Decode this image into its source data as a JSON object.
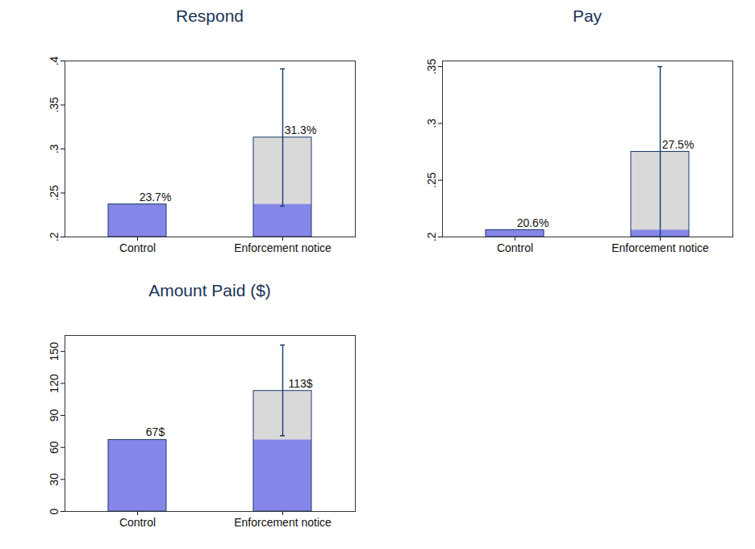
{
  "chart_data": [
    {
      "type": "bar",
      "title": "Respond",
      "categories": [
        "Control",
        "Enforcement notice"
      ],
      "values": [
        0.237,
        0.313
      ],
      "value_labels": [
        "23.7%",
        "31.3%"
      ],
      "colors": [
        "#8686e8",
        "#d9d9d9"
      ],
      "error_bars": [
        null,
        [
          0.235,
          0.391
        ]
      ],
      "ylim": [
        0.2,
        0.4
      ],
      "yticks": [
        {
          "value": 0.2,
          "label": ".2"
        },
        {
          "value": 0.25,
          "label": ".25"
        },
        {
          "value": 0.3,
          "label": ".3"
        },
        {
          "value": 0.35,
          "label": ".35"
        },
        {
          "value": 0.4,
          "label": ".4"
        }
      ],
      "data_labels": true
    },
    {
      "type": "bar",
      "title": "Pay",
      "categories": [
        "Control",
        "Enforcement notice"
      ],
      "values": [
        0.206,
        0.275
      ],
      "value_labels": [
        "20.6%",
        "27.5%"
      ],
      "colors": [
        "#8686e8",
        "#d9d9d9"
      ],
      "error_bars": [
        null,
        [
          0.2,
          0.35
        ]
      ],
      "ylim": [
        0.2,
        0.355
      ],
      "yticks": [
        {
          "value": 0.2,
          "label": ".2"
        },
        {
          "value": 0.25,
          "label": ".25"
        },
        {
          "value": 0.3,
          "label": ".3"
        },
        {
          "value": 0.35,
          "label": ".35"
        }
      ],
      "data_labels": true
    },
    {
      "type": "bar",
      "title": "Amount Paid ($)",
      "categories": [
        "Control",
        "Enforcement notice"
      ],
      "values": [
        67,
        113
      ],
      "value_labels": [
        "67$",
        "113$"
      ],
      "colors": [
        "#8686e8",
        "#d9d9d9"
      ],
      "error_bars": [
        null,
        [
          71,
          156
        ]
      ],
      "ylim": [
        0,
        165
      ],
      "yticks": [
        0,
        30,
        60,
        90,
        120,
        150
      ],
      "data_labels": true
    }
  ]
}
